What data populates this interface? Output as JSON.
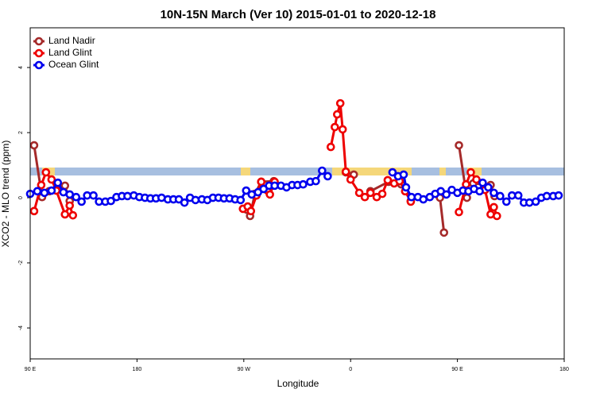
{
  "chart_data": {
    "type": "line",
    "title": "10N-15N March (Ver 10)   2015-01-01 to 2020-12-18",
    "x_label": "Longitude",
    "y_label": "XCO2 - MLO trend (ppm)",
    "xlim": [
      90,
      540
    ],
    "ylim": [
      -4.95,
      5.22
    ],
    "xticks": [
      {
        "value": 90,
        "label": "90 E"
      },
      {
        "value": 180,
        "label": "180"
      },
      {
        "value": 270,
        "label": "90 W"
      },
      {
        "value": 360,
        "label": "0"
      },
      {
        "value": 450,
        "label": "90 E"
      },
      {
        "value": 540,
        "label": "180"
      }
    ],
    "yticks": [
      -4,
      -2,
      0,
      2,
      4
    ],
    "legend": "top-left",
    "series": [
      {
        "name": "Land Nadir",
        "color": "#a52a2a",
        "x": [
          93.3,
          100,
          106,
          119.3,
          123.3,
          null,
          272.7,
          275.3,
          279.3,
          284.7,
          295.3,
          null,
          356,
          362.7,
          null,
          376.7,
          392,
          402.7,
          410.7,
          null,
          435.3,
          438.7,
          null,
          451.3,
          458,
          463.3,
          478,
          481.3
        ],
        "values": [
          1.61,
          0.02,
          0.2,
          0.37,
          -0.1,
          null,
          -0.37,
          -0.56,
          0.12,
          0.49,
          0.51,
          null,
          0.78,
          0.71,
          null,
          0.2,
          0.49,
          0.41,
          -0.1,
          null,
          0,
          -1.07,
          null,
          1.61,
          0,
          0.44,
          0.39,
          0.05
        ]
      },
      {
        "name": "Land Glint",
        "color": "#ee0000",
        "x": [
          93.3,
          99.3,
          103.3,
          108,
          112,
          119.3,
          123.3,
          126,
          null,
          269.3,
          273.3,
          276,
          280.7,
          284.7,
          290,
          292,
          296,
          null,
          343.3,
          346.7,
          348.7,
          351.3,
          353.3,
          356,
          360,
          367.3,
          372,
          376.7,
          382,
          386.7,
          391.3,
          396.7,
          401.3,
          406,
          410.7,
          null,
          451.3,
          457.3,
          461.3,
          466,
          473.3,
          478,
          480.7,
          483.3
        ],
        "values": [
          -0.41,
          0.39,
          0.78,
          0.56,
          0.22,
          -0.51,
          -0.24,
          -0.54,
          null,
          -0.34,
          -0.27,
          -0.41,
          0.07,
          0.49,
          0.22,
          0.1,
          0.49,
          null,
          1.56,
          2.17,
          2.56,
          2.9,
          2.1,
          0.8,
          0.56,
          0.15,
          0.02,
          0.15,
          0.02,
          0.12,
          0.54,
          0.44,
          0.51,
          0.2,
          -0.12,
          null,
          -0.44,
          0.41,
          0.78,
          0.56,
          0.24,
          -0.51,
          -0.29,
          -0.56
        ]
      },
      {
        "name": "Ocean Glint",
        "color": "#0000ee",
        "x": [
          90,
          96,
          102,
          108,
          113.3,
          118,
          123.3,
          128.7,
          133.3,
          138,
          143.3,
          148,
          153.3,
          158,
          162.7,
          167.3,
          172,
          177.3,
          182,
          186.7,
          191.3,
          196,
          200.7,
          206,
          210.7,
          215.3,
          220,
          224.7,
          229.3,
          234.7,
          239.3,
          244,
          248.7,
          253.3,
          258,
          262.7,
          267.3,
          272,
          276.7,
          282,
          286.7,
          291.3,
          296,
          301.3,
          306,
          310.7,
          315.3,
          320,
          326,
          330.7,
          336,
          340.7,
          null,
          395.3,
          400,
          404.7,
          406.7,
          411.3,
          416.7,
          421.3,
          426.7,
          431.3,
          436,
          440.7,
          445.3,
          450,
          454.7,
          459.3,
          464,
          468.7,
          471.3,
          476,
          480.7,
          486,
          491.3,
          496,
          501.3,
          506,
          510.7,
          516,
          520.7,
          525.3,
          530.7,
          535.3
        ],
        "values": [
          0.12,
          0.2,
          0.15,
          0.22,
          0.46,
          0.17,
          0.1,
          0.02,
          -0.12,
          0.07,
          0.07,
          -0.12,
          -0.12,
          -0.1,
          0.02,
          0.05,
          0.05,
          0.07,
          0.02,
          0,
          -0.02,
          -0.02,
          0,
          -0.05,
          -0.05,
          -0.05,
          -0.15,
          0,
          -0.07,
          -0.05,
          -0.07,
          0,
          0,
          -0.02,
          -0.02,
          -0.05,
          -0.07,
          0.22,
          0.1,
          0.17,
          0.27,
          0.37,
          0.37,
          0.37,
          0.32,
          0.39,
          0.39,
          0.41,
          0.49,
          0.51,
          0.83,
          0.66,
          null,
          0.78,
          0.66,
          0.71,
          0.32,
          0.02,
          0.02,
          -0.05,
          0.02,
          0.12,
          0.2,
          0.1,
          0.24,
          0.15,
          0.22,
          0.2,
          0.27,
          0.2,
          0.46,
          0.32,
          0.15,
          0.05,
          -0.12,
          0.07,
          0.07,
          -0.15,
          -0.15,
          -0.12,
          0,
          0.05,
          0.05,
          0.07
        ]
      }
    ]
  }
}
